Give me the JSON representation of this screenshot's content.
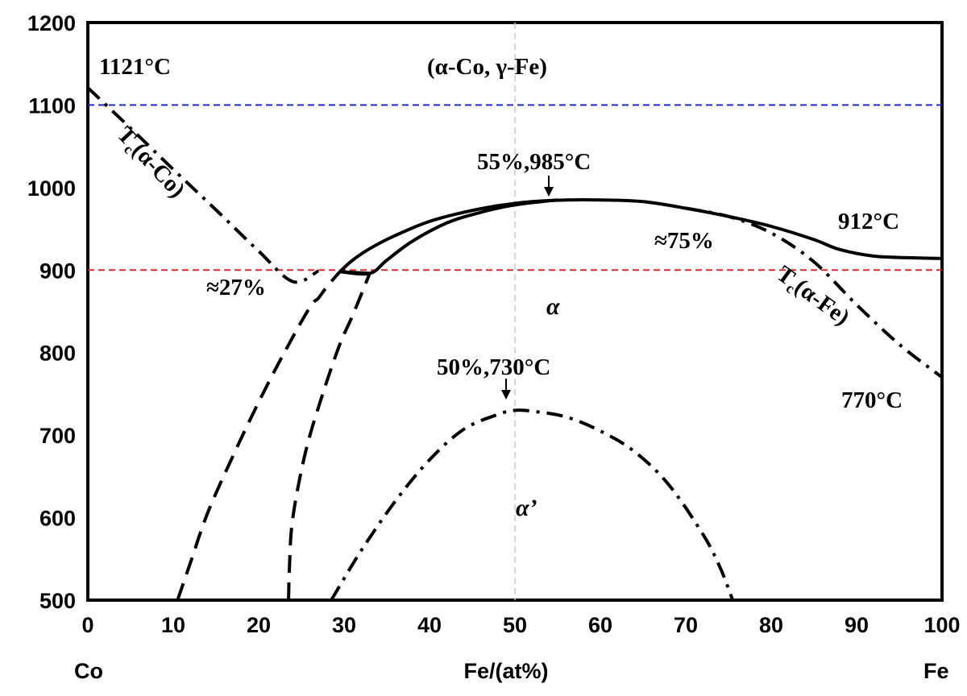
{
  "chart_data": {
    "type": "line",
    "xlabel": "Fe/(at%)",
    "x_end_left": "Co",
    "x_end_right": "Fe",
    "xlim": [
      0,
      100
    ],
    "ylim": [
      500,
      1200
    ],
    "x_ticks": [
      "0",
      "10",
      "20",
      "30",
      "40",
      "50",
      "60",
      "70",
      "80",
      "90",
      "100"
    ],
    "y_ticks": [
      "500",
      "600",
      "700",
      "800",
      "900",
      "1000",
      "1100",
      "1200"
    ],
    "reference_lines": [
      {
        "axis": "y",
        "value": 1100,
        "color": "#1f2dbf",
        "style": "dashed"
      },
      {
        "axis": "y",
        "value": 900,
        "color": "#d42a2a",
        "style": "dashed"
      },
      {
        "axis": "x",
        "value": 50,
        "color": "#c8c8c8",
        "style": "dashed"
      }
    ],
    "series": [
      {
        "style": "solid",
        "points": [
          [
            29.5,
            898
          ],
          [
            31,
            912
          ],
          [
            33,
            926
          ],
          [
            36,
            942
          ],
          [
            40,
            959
          ],
          [
            44,
            970
          ],
          [
            48,
            978
          ],
          [
            52,
            983
          ],
          [
            56,
            985
          ],
          [
            60,
            985
          ],
          [
            65,
            983
          ],
          [
            70,
            975
          ],
          [
            75,
            965
          ],
          [
            80,
            953
          ],
          [
            85,
            937
          ],
          [
            88,
            925
          ],
          [
            92,
            917
          ],
          [
            96,
            915
          ],
          [
            100,
            914
          ]
        ]
      },
      {
        "style": "solid",
        "points": [
          [
            29.5,
            898
          ],
          [
            33,
            896
          ],
          [
            35,
            912
          ],
          [
            38,
            935
          ],
          [
            42,
            957
          ],
          [
            46,
            970
          ],
          [
            50,
            979
          ],
          [
            55,
            985
          ]
        ]
      },
      {
        "style": "solid",
        "points": [
          [
            29.5,
            898
          ],
          [
            33,
            896
          ]
        ]
      },
      {
        "style": "dashdot",
        "points": [
          [
            0,
            1121
          ],
          [
            5,
            1072
          ],
          [
            10,
            1022
          ],
          [
            15,
            973
          ],
          [
            20,
            923
          ],
          [
            24,
            886
          ],
          [
            27,
            899
          ]
        ]
      },
      {
        "style": "dashdot",
        "points": [
          [
            70,
            975
          ],
          [
            75,
            965
          ],
          [
            80,
            945
          ],
          [
            85,
            910
          ],
          [
            90,
            858
          ],
          [
            95,
            810
          ],
          [
            100,
            770
          ]
        ]
      },
      {
        "style": "dashed",
        "points": [
          [
            10.5,
            500
          ],
          [
            12,
            545
          ],
          [
            14,
            605
          ],
          [
            17,
            675
          ],
          [
            20,
            740
          ],
          [
            23,
            800
          ],
          [
            26,
            855
          ],
          [
            27,
            866
          ],
          [
            28,
            880
          ],
          [
            29.5,
            898
          ]
        ]
      },
      {
        "style": "dashed",
        "points": [
          [
            23.5,
            500
          ],
          [
            23.6,
            540
          ],
          [
            24,
            600
          ],
          [
            25.5,
            680
          ],
          [
            27.5,
            750
          ],
          [
            29.5,
            810
          ],
          [
            31,
            845
          ],
          [
            33,
            896
          ]
        ]
      },
      {
        "style": "dashdot",
        "points": [
          [
            28.5,
            500
          ],
          [
            32,
            560
          ],
          [
            36,
            620
          ],
          [
            40,
            670
          ],
          [
            44,
            707
          ],
          [
            48,
            725
          ],
          [
            50,
            730
          ],
          [
            52,
            729
          ],
          [
            56,
            722
          ],
          [
            60,
            705
          ],
          [
            64,
            680
          ],
          [
            68,
            640
          ],
          [
            72,
            580
          ],
          [
            74,
            540
          ],
          [
            75.5,
            500
          ]
        ]
      }
    ],
    "annotations": {
      "left_melt": "1121°C",
      "gamma_region": "(α-Co, γ-Fe)",
      "tc_co": "Tc(α-Co)",
      "peak_top": "55%,985°C",
      "fe_912": "912°C",
      "pct_75": "≈75%",
      "pct_27": "≈27%",
      "alpha": "α",
      "tc_fe": "Tc(α-Fe)",
      "peak_order": "50%,730°C",
      "fe_770": "770°C",
      "alpha_prime": "α’"
    },
    "grid": false,
    "legend": "none"
  }
}
